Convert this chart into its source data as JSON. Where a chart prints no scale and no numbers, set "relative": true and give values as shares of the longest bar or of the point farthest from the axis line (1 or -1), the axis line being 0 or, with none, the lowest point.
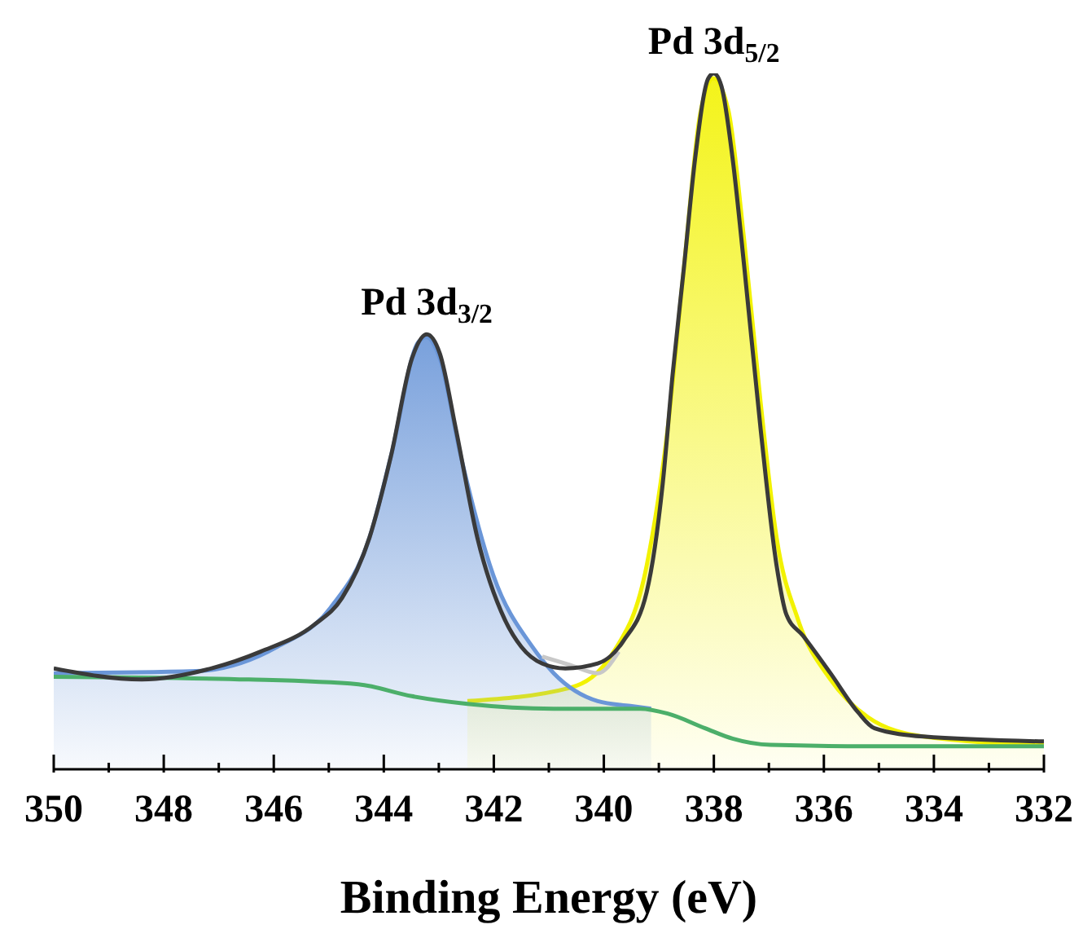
{
  "chart_data": {
    "type": "line",
    "relative": true,
    "xlabel": "Binding Energy (eV)",
    "xlim": [
      350,
      332
    ],
    "xticks": [
      350,
      {
        "value": 349,
        "label": null
      },
      348,
      {
        "value": 347,
        "label": null
      },
      346,
      {
        "value": 345,
        "label": null
      },
      344,
      {
        "value": 343,
        "label": null
      },
      342,
      {
        "value": 341,
        "label": null
      },
      340,
      {
        "value": 339,
        "label": null
      },
      338,
      {
        "value": 337,
        "label": null
      },
      336,
      {
        "value": 335,
        "label": null
      },
      334,
      {
        "value": 333,
        "label": null
      },
      332
    ],
    "grid": false,
    "annotations": [
      {
        "text": "Pd 3d$_{3/2}$",
        "x": 343.22,
        "y": 0.625
      },
      {
        "text": "Pd 3d$_{5/2}$",
        "x": 338.0,
        "y": 1.0
      }
    ],
    "series": [
      {
        "type": "area",
        "color": "#f2f200",
        "x": [
          342.48,
          340.62,
          339.82,
          339.22,
          338.84,
          338.54,
          338.25,
          338.01,
          337.74,
          337.45,
          337.15,
          336.86,
          336.47,
          335.88,
          335.2,
          334.19,
          332
        ],
        "values": [
          0.098,
          0.117,
          0.169,
          0.293,
          0.489,
          0.724,
          0.941,
          0.993,
          0.948,
          0.761,
          0.527,
          0.333,
          0.215,
          0.129,
          0.075,
          0.047,
          0.035
        ]
      },
      {
        "type": "area",
        "color": "#6a96d8",
        "x": [
          350,
          347.42,
          345.94,
          344.97,
          344.26,
          343.87,
          343.37,
          343.22,
          342.98,
          342.6,
          342.01,
          341.3,
          340.91,
          340.11,
          339.52,
          339.14
        ],
        "values": [
          0.138,
          0.141,
          0.176,
          0.232,
          0.333,
          0.45,
          0.614,
          0.621,
          0.59,
          0.45,
          0.279,
          0.176,
          0.138,
          0.098,
          0.091,
          0.087
        ]
      },
      {
        "color": "#c8c8c8",
        "x": [
          341.12,
          340.62,
          340.11,
          339.73
        ],
        "values": [
          0.162,
          0.15,
          0.138,
          0.169
        ]
      },
      {
        "color": "#4caf6a",
        "x": [
          350,
          346.45,
          344.46,
          343.49,
          342.48,
          340.91,
          339.34,
          338.84,
          338.16,
          337.66,
          336.97,
          335.2,
          332
        ],
        "values": [
          0.133,
          0.129,
          0.122,
          0.105,
          0.094,
          0.087,
          0.087,
          0.08,
          0.059,
          0.044,
          0.035,
          0.033,
          0.033
        ]
      },
      {
        "color": "#3a3a3a",
        "x": [
          350,
          348.4,
          347.13,
          346.24,
          345.26,
          344.76,
          344.26,
          343.87,
          343.49,
          343.22,
          342.98,
          342.69,
          342.3,
          341.8,
          341.5,
          341.12,
          340.7,
          340.11,
          339.64,
          339.22,
          338.93,
          338.75,
          338.54,
          338.34,
          338.1,
          338.0,
          337.86,
          337.66,
          337.45,
          337.15,
          336.86,
          336.68,
          336.38,
          335.88,
          335.38,
          335.08,
          334.19,
          332
        ],
        "values": [
          0.145,
          0.129,
          0.145,
          0.169,
          0.208,
          0.246,
          0.333,
          0.45,
          0.59,
          0.625,
          0.597,
          0.489,
          0.333,
          0.215,
          0.176,
          0.152,
          0.145,
          0.152,
          0.185,
          0.255,
          0.41,
          0.567,
          0.724,
          0.878,
          0.993,
          1.0,
          0.981,
          0.878,
          0.724,
          0.489,
          0.293,
          0.222,
          0.192,
          0.138,
          0.082,
          0.059,
          0.047,
          0.04
        ]
      }
    ]
  }
}
